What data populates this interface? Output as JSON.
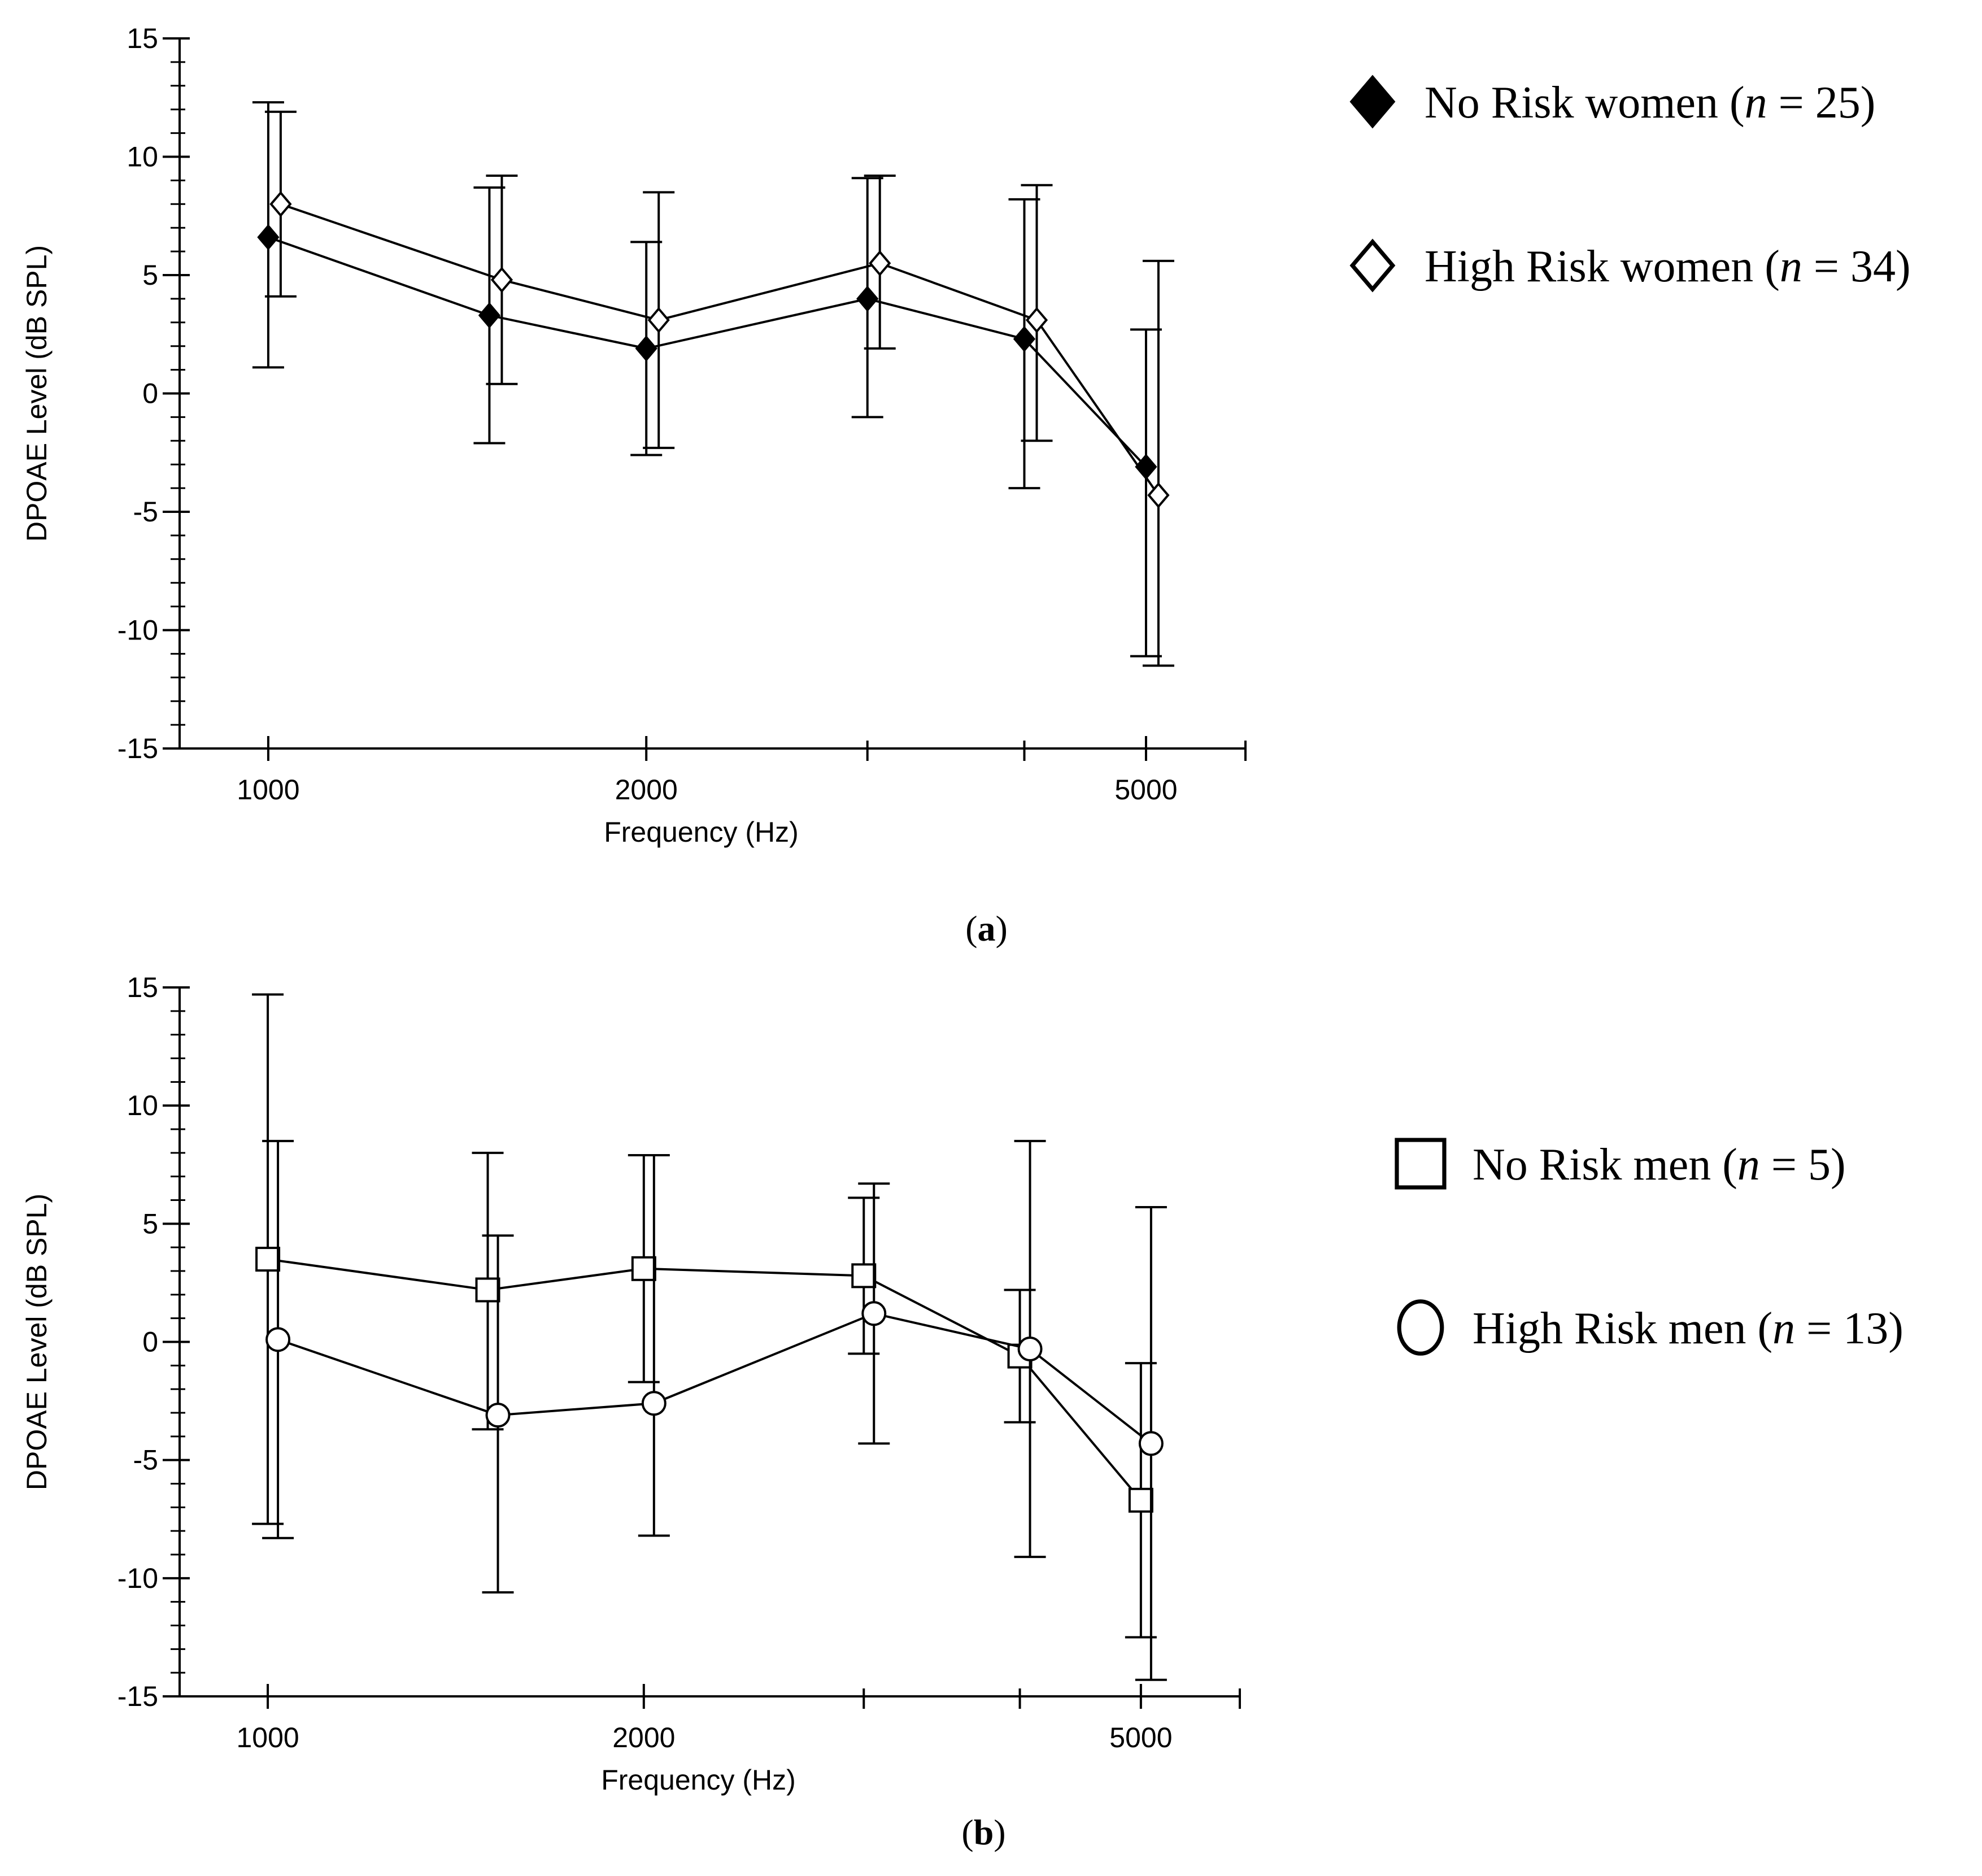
{
  "chart_data": [
    {
      "type": "line",
      "panel_label": "a",
      "xlabel": "Frequency (Hz)",
      "ylabel": "DPOAE Level (dB SPL)",
      "xscale": "log",
      "xlim": [
        850,
        6000
      ],
      "ylim": [
        -15,
        15
      ],
      "x_ticks": [
        1000,
        2000,
        5000
      ],
      "x_tick_labels": [
        "1000",
        "2000",
        "5000"
      ],
      "y_ticks": [
        15,
        10,
        5,
        0,
        -5,
        -10,
        -15
      ],
      "y_tick_labels": [
        "15",
        "10",
        "5",
        "0",
        "-5",
        "-10",
        "-15"
      ],
      "grid": false,
      "legend_position": "right",
      "series": [
        {
          "name": "No Risk women",
          "legend_prefix": "No Risk women (",
          "legend_n_var": "n",
          "legend_suffix": " = 25)",
          "marker": "filled-diamond",
          "x": [
            1000,
            1500,
            2000,
            3000,
            4000,
            5000
          ],
          "values": [
            6.6,
            3.3,
            1.9,
            4.0,
            2.3,
            -3.1
          ],
          "err_low": [
            1.1,
            -2.1,
            -2.6,
            -1.0,
            -4.0,
            -11.1
          ],
          "err_high": [
            12.3,
            8.7,
            6.4,
            9.1,
            8.2,
            2.7
          ]
        },
        {
          "name": "High Risk women",
          "legend_prefix": "High Risk women (",
          "legend_n_var": "n",
          "legend_suffix": " = 34)",
          "marker": "open-diamond",
          "x": [
            1000,
            1500,
            2000,
            3000,
            4000,
            5000
          ],
          "values": [
            8.0,
            4.8,
            3.1,
            5.5,
            3.1,
            -4.3
          ],
          "err_low": [
            4.1,
            0.4,
            -2.3,
            1.9,
            -2.0,
            -11.5
          ],
          "err_high": [
            11.9,
            9.2,
            8.5,
            9.2,
            8.8,
            5.6
          ]
        }
      ]
    },
    {
      "type": "line",
      "panel_label": "b",
      "xlabel": "Frequency (Hz)",
      "ylabel": "DPOAE Level (dB SPL)",
      "xscale": "log",
      "xlim": [
        850,
        6000
      ],
      "ylim": [
        -15,
        15
      ],
      "x_ticks": [
        1000,
        2000,
        5000
      ],
      "x_tick_labels": [
        "1000",
        "2000",
        "5000"
      ],
      "y_ticks": [
        15,
        10,
        5,
        0,
        -5,
        -10,
        -15
      ],
      "y_tick_labels": [
        "15",
        "10",
        "5",
        "0",
        "-5",
        "-10",
        "-15"
      ],
      "grid": false,
      "legend_position": "right",
      "series": [
        {
          "name": "No Risk men",
          "legend_prefix": "No Risk men (",
          "legend_n_var": "n",
          "legend_suffix": " = 5)",
          "marker": "open-square",
          "x": [
            1000,
            1500,
            2000,
            3000,
            4000,
            5000
          ],
          "values": [
            3.5,
            2.2,
            3.1,
            2.8,
            -0.6,
            -6.7
          ],
          "err_low": [
            -7.7,
            -3.7,
            -1.7,
            -0.5,
            -3.4,
            -12.5
          ],
          "err_high": [
            14.7,
            8.0,
            7.9,
            6.1,
            2.2,
            -0.9
          ]
        },
        {
          "name": "High Risk men",
          "legend_prefix": "High Risk men (",
          "legend_n_var": "n",
          "legend_suffix": " = 13)",
          "marker": "open-circle",
          "x": [
            1000,
            1500,
            2000,
            3000,
            4000,
            5000
          ],
          "values": [
            0.1,
            -3.1,
            -2.6,
            1.2,
            -0.3,
            -4.3
          ],
          "err_low": [
            -8.3,
            -10.6,
            -8.2,
            -4.3,
            -9.1,
            -14.3
          ],
          "err_high": [
            8.5,
            4.5,
            7.9,
            6.7,
            8.5,
            5.7
          ]
        }
      ]
    }
  ]
}
